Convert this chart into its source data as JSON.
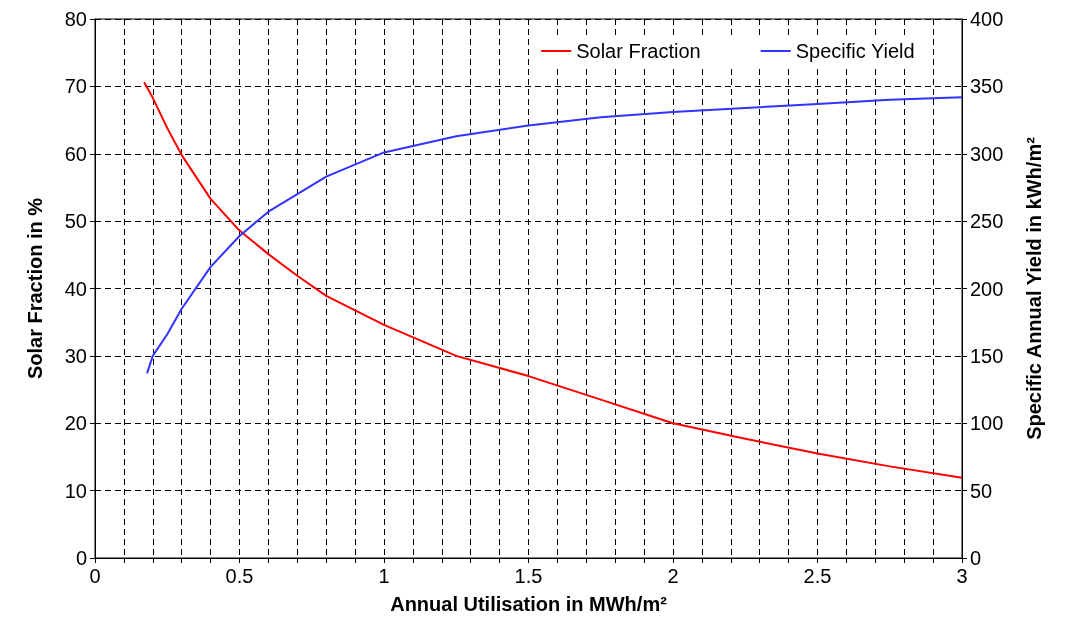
{
  "chart_data": {
    "type": "line",
    "xlabel": "Annual Utilisation in MWh/m²",
    "ylabel": "Solar Fraction in %",
    "y2label": "Specific Annual Yield in kWh/m²",
    "xlim": [
      0,
      3
    ],
    "xticks": [
      0,
      {
        "value": 0.1,
        "label": null
      },
      {
        "value": 0.2,
        "label": null
      },
      {
        "value": 0.3,
        "label": null
      },
      {
        "value": 0.4,
        "label": null
      },
      0.5,
      {
        "value": 0.6,
        "label": null
      },
      {
        "value": 0.7,
        "label": null
      },
      {
        "value": 0.8,
        "label": null
      },
      {
        "value": 0.9,
        "label": null
      },
      1,
      {
        "value": 1.1,
        "label": null
      },
      {
        "value": 1.2,
        "label": null
      },
      {
        "value": 1.3,
        "label": null
      },
      {
        "value": 1.4,
        "label": null
      },
      1.5,
      {
        "value": 1.6,
        "label": null
      },
      {
        "value": 1.7,
        "label": null
      },
      {
        "value": 1.8,
        "label": null
      },
      {
        "value": 1.9,
        "label": null
      },
      2,
      {
        "value": 2.1,
        "label": null
      },
      {
        "value": 2.2,
        "label": null
      },
      {
        "value": 2.3,
        "label": null
      },
      {
        "value": 2.4,
        "label": null
      },
      2.5,
      {
        "value": 2.6,
        "label": null
      },
      {
        "value": 2.7,
        "label": null
      },
      {
        "value": 2.8,
        "label": null
      },
      {
        "value": 2.9,
        "label": null
      },
      3
    ],
    "ylim": [
      0,
      80
    ],
    "yticks": [
      0,
      10,
      20,
      30,
      40,
      50,
      60,
      70,
      80
    ],
    "y2lim": [
      0,
      400
    ],
    "y2ticks": [
      0,
      50,
      100,
      150,
      200,
      250,
      300,
      350,
      400
    ],
    "grid": true,
    "legend": "top right",
    "marker": "none",
    "line_style": "solid",
    "series": [
      {
        "name": "Solar Fraction",
        "color": "#ff0000",
        "x": [
          0.17,
          0.2,
          0.25,
          0.3,
          0.4,
          0.5,
          0.6,
          0.7,
          0.8,
          1.0,
          1.25,
          1.5,
          1.75,
          2.0,
          2.25,
          2.5,
          2.75,
          3.0
        ],
        "values": [
          70.6,
          68.3,
          63.8,
          59.8,
          53.3,
          48.6,
          45.1,
          41.9,
          38.9,
          34.6,
          30,
          27,
          23.5,
          20,
          17.7,
          15.5,
          13.6,
          11.9
        ]
      },
      {
        "name": "Specific Yield",
        "color": "#3333ff",
        "axis": "y2",
        "x": [
          0.18,
          0.2,
          0.25,
          0.3,
          0.4,
          0.5,
          0.6,
          0.7,
          0.8,
          1.0,
          1.25,
          1.5,
          1.75,
          2.0,
          2.25,
          2.5,
          2.75,
          3.0
        ],
        "values": [
          137,
          150,
          166,
          185,
          216,
          239,
          257,
          270,
          283,
          301,
          313,
          321,
          327,
          331,
          334,
          337,
          340,
          342
        ]
      }
    ]
  }
}
